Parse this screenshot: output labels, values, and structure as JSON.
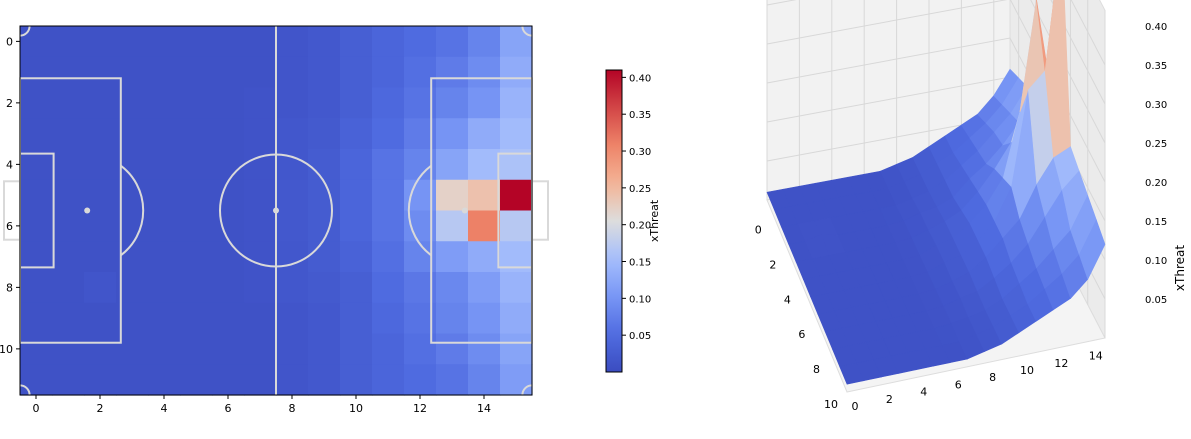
{
  "chart_data": [
    {
      "type": "heatmap",
      "title": "",
      "xlabel": "",
      "ylabel": "",
      "cols": 16,
      "rows": 12,
      "xlim": [
        -0.5,
        15.5
      ],
      "ylim": [
        11.5,
        -0.5
      ],
      "x_ticks": [
        "0",
        "2",
        "4",
        "6",
        "8",
        "10",
        "12",
        "14"
      ],
      "y_ticks": [
        "0",
        "2",
        "4",
        "6",
        "8",
        "10"
      ],
      "grid": false,
      "overlay": "football pitch markings",
      "colormap": "coolwarm",
      "values": [
        [
          0.01,
          0.01,
          0.01,
          0.01,
          0.01,
          0.01,
          0.01,
          0.01,
          0.015,
          0.02,
          0.03,
          0.04,
          0.05,
          0.06,
          0.08,
          0.12
        ],
        [
          0.01,
          0.01,
          0.01,
          0.01,
          0.01,
          0.01,
          0.01,
          0.01,
          0.015,
          0.02,
          0.03,
          0.04,
          0.055,
          0.07,
          0.09,
          0.13
        ],
        [
          0.01,
          0.01,
          0.01,
          0.01,
          0.01,
          0.01,
          0.01,
          0.012,
          0.015,
          0.02,
          0.03,
          0.045,
          0.06,
          0.08,
          0.1,
          0.14
        ],
        [
          0.01,
          0.01,
          0.01,
          0.01,
          0.01,
          0.01,
          0.01,
          0.012,
          0.018,
          0.022,
          0.035,
          0.05,
          0.07,
          0.1,
          0.13,
          0.15
        ],
        [
          0.01,
          0.01,
          0.01,
          0.01,
          0.01,
          0.01,
          0.01,
          0.012,
          0.018,
          0.025,
          0.04,
          0.06,
          0.08,
          0.12,
          0.15,
          0.16
        ],
        [
          0.01,
          0.01,
          0.01,
          0.01,
          0.01,
          0.01,
          0.01,
          0.012,
          0.02,
          0.025,
          0.04,
          0.06,
          0.1,
          0.22,
          0.24,
          0.41
        ],
        [
          0.01,
          0.01,
          0.01,
          0.01,
          0.01,
          0.01,
          0.01,
          0.012,
          0.02,
          0.025,
          0.04,
          0.06,
          0.09,
          0.17,
          0.31,
          0.17
        ],
        [
          0.01,
          0.01,
          0.01,
          0.01,
          0.01,
          0.01,
          0.01,
          0.012,
          0.018,
          0.025,
          0.035,
          0.055,
          0.08,
          0.11,
          0.13,
          0.15
        ],
        [
          0.01,
          0.01,
          0.015,
          0.01,
          0.01,
          0.01,
          0.01,
          0.012,
          0.018,
          0.022,
          0.03,
          0.05,
          0.065,
          0.085,
          0.11,
          0.14
        ],
        [
          0.01,
          0.01,
          0.01,
          0.01,
          0.01,
          0.01,
          0.01,
          0.01,
          0.015,
          0.02,
          0.03,
          0.045,
          0.06,
          0.08,
          0.1,
          0.13
        ],
        [
          0.01,
          0.01,
          0.01,
          0.01,
          0.01,
          0.01,
          0.01,
          0.01,
          0.015,
          0.02,
          0.03,
          0.04,
          0.055,
          0.07,
          0.09,
          0.12
        ],
        [
          0.01,
          0.01,
          0.01,
          0.01,
          0.01,
          0.01,
          0.01,
          0.01,
          0.015,
          0.02,
          0.03,
          0.04,
          0.05,
          0.06,
          0.08,
          0.11
        ]
      ]
    },
    {
      "type": "colorbar",
      "label": "xThreat",
      "range": [
        0.0,
        0.41
      ],
      "ticks": [
        "0.05",
        "0.10",
        "0.15",
        "0.20",
        "0.25",
        "0.30",
        "0.35",
        "0.40"
      ]
    },
    {
      "type": "surface",
      "title": "",
      "zlabel": "xThreat",
      "x_ticks": [
        "0",
        "2",
        "4",
        "6",
        "8",
        "10",
        "12",
        "14"
      ],
      "y_ticks": [
        "10",
        "8",
        "6",
        "4",
        "2",
        "0"
      ],
      "z_ticks": [
        "0.05",
        "0.10",
        "0.15",
        "0.20",
        "0.25",
        "0.30",
        "0.35",
        "0.40"
      ],
      "zlim": [
        0.0,
        0.42
      ],
      "grid": true,
      "colormap": "coolwarm",
      "source": "same xThreat grid as heatmap"
    }
  ]
}
